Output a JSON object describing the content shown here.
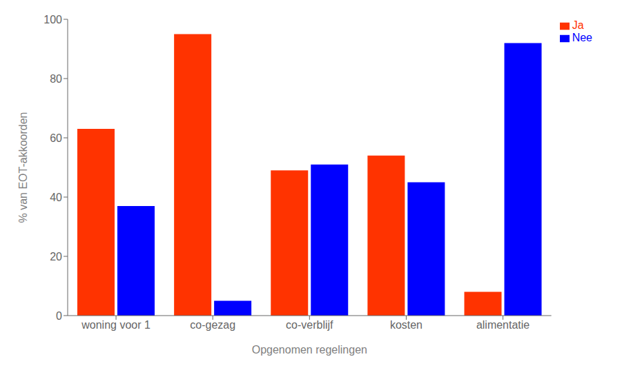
{
  "chart_data": {
    "type": "bar",
    "categories": [
      "woning voor 1",
      "co-gezag",
      "co-verblijf",
      "kosten",
      "alimentatie"
    ],
    "series": [
      {
        "name": "Ja",
        "color": "#FF3300",
        "values": [
          63,
          95,
          49,
          54,
          8
        ]
      },
      {
        "name": "Nee",
        "color": "#0000FF",
        "values": [
          37,
          5,
          51,
          45,
          92
        ]
      }
    ],
    "xlabel": "Opgenomen regelingen",
    "ylabel": "% van EOT-akkoorden",
    "ylim": [
      0,
      100
    ],
    "yticks": [
      0,
      20,
      40,
      60,
      80,
      100
    ],
    "grid": false,
    "legend": "upper right"
  }
}
